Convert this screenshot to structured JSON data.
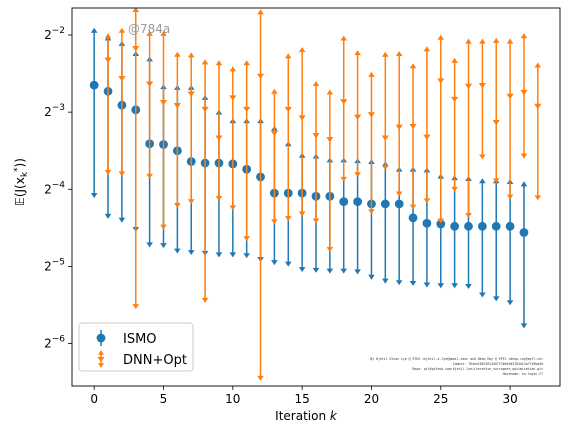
{
  "watermark": "@784a",
  "credit_lines": [
    "By Kjetil Olsen Lye @ ETHZ <kjetil.o.lye@gmail.com> and Deep Ray @ EPFL <deep.ray@epfl.ch>",
    "Commit: 784ae10074814507f3b5e9d3f84d13a77e9bd40",
    "Repo: git@github.com:kjetil-lye/iterative_surrogate_optimization.git",
    "Hostname: eu-login-27"
  ],
  "colors": {
    "ismo": "#1f77b4",
    "dnn": "#ff7f0e"
  },
  "chart_data": {
    "type": "scatter",
    "xlabel": "Iteration k",
    "ylabel": "𝔼(J(x_k*))",
    "xlim": [
      -1.6,
      33.6
    ],
    "ylim_log2": [
      -6.55,
      -1.65
    ],
    "yscale": "log2",
    "x_ticks": [
      0,
      5,
      10,
      15,
      20,
      25,
      30
    ],
    "y_ticks_exp": [
      -6,
      -5,
      -4,
      -3,
      -2
    ],
    "legend": {
      "placement": "lower-left",
      "entries": [
        "ISMO",
        "DNN+Opt"
      ]
    },
    "series": [
      {
        "name": "ISMO",
        "marker": "circle",
        "x": [
          0,
          1,
          2,
          3,
          4,
          5,
          6,
          7,
          8,
          9,
          10,
          11,
          12,
          13,
          14,
          15,
          16,
          17,
          18,
          19,
          20,
          21,
          22,
          23,
          24,
          25,
          26,
          27,
          28,
          29,
          30,
          31
        ],
        "exp": [
          -2.65,
          -2.73,
          -2.91,
          -2.97,
          -3.41,
          -3.42,
          -3.5,
          -3.64,
          -3.66,
          -3.66,
          -3.67,
          -3.74,
          -3.84,
          -4.05,
          -4.05,
          -4.05,
          -4.09,
          -4.09,
          -4.16,
          -4.16,
          -4.19,
          -4.19,
          -4.19,
          -4.37,
          -4.44,
          -4.45,
          -4.48,
          -4.48,
          -4.48,
          -4.48,
          -4.48,
          -4.56
        ],
        "upper_exp": [
          -1.92,
          -2.02,
          -2.09,
          -2.22,
          -2.29,
          -2.65,
          -2.66,
          -2.66,
          -2.79,
          -2.98,
          -3.09,
          -3.09,
          -3.09,
          -3.19,
          -3.39,
          -3.54,
          -3.55,
          -3.6,
          -3.6,
          -3.61,
          -3.62,
          -3.65,
          -3.72,
          -3.72,
          -3.73,
          -3.81,
          -3.83,
          -3.84,
          -3.87,
          -3.87,
          -3.88,
          -3.91
        ],
        "lower_exp": [
          -4.1,
          -4.37,
          -4.42,
          -4.54,
          -4.74,
          -4.75,
          -4.82,
          -4.84,
          -4.85,
          -4.87,
          -4.87,
          -4.88,
          -4.93,
          -4.97,
          -4.99,
          -5.06,
          -5.07,
          -5.08,
          -5.08,
          -5.09,
          -5.16,
          -5.21,
          -5.23,
          -5.24,
          -5.26,
          -5.27,
          -5.27,
          -5.28,
          -5.39,
          -5.44,
          -5.49,
          -5.79
        ]
      },
      {
        "name": "DNN+Opt",
        "marker": "triangle-down",
        "x": [
          1,
          2,
          3,
          4,
          5,
          6,
          7,
          8,
          9,
          10,
          11,
          12,
          13,
          14,
          15,
          16,
          17,
          18,
          19,
          20,
          21,
          22,
          23,
          24,
          25,
          26,
          27,
          28,
          29,
          30,
          31,
          32
        ],
        "exp": [
          -2.32,
          -2.56,
          -2.17,
          -2.63,
          -2.87,
          -2.91,
          -2.76,
          -2.96,
          -3.33,
          -2.81,
          -2.96,
          -2.53,
          -3.27,
          -2.96,
          -3.07,
          -3.3,
          -3.35,
          -2.86,
          -3.06,
          -3.03,
          -3.33,
          -3.19,
          -3.18,
          -3.32,
          -2.59,
          -2.83,
          -2.66,
          -2.65,
          -3.13,
          -2.79,
          -2.74,
          -2.92
        ],
        "upper_exp": [
          -1.99,
          -1.92,
          -1.65,
          -1.96,
          -1.96,
          -2.23,
          -2.24,
          -2.33,
          -2.34,
          -2.42,
          -2.34,
          -1.68,
          -2.71,
          -2.25,
          -2.17,
          -2.61,
          -2.72,
          -2.02,
          -2.21,
          -2.49,
          -2.23,
          -2.22,
          -2.38,
          -2.16,
          -2.01,
          -2.31,
          -2.06,
          -2.06,
          -2.05,
          -2.06,
          -1.99,
          -2.37
        ],
        "lower_exp": [
          -3.8,
          -3.82,
          -5.54,
          -3.85,
          -4.51,
          -4.23,
          -4.18,
          -5.46,
          -4.14,
          -4.26,
          -4.66,
          -6.47,
          -4.44,
          -4.4,
          -4.34,
          -4.43,
          -4.8,
          -3.89,
          -3.83,
          -4.31,
          -3.74,
          -4.08,
          -4.25,
          -4.17,
          -4.43,
          -4.02,
          -4.36,
          -3.6,
          -3.91,
          -4.12,
          -3.59,
          -4.13
        ]
      }
    ]
  }
}
